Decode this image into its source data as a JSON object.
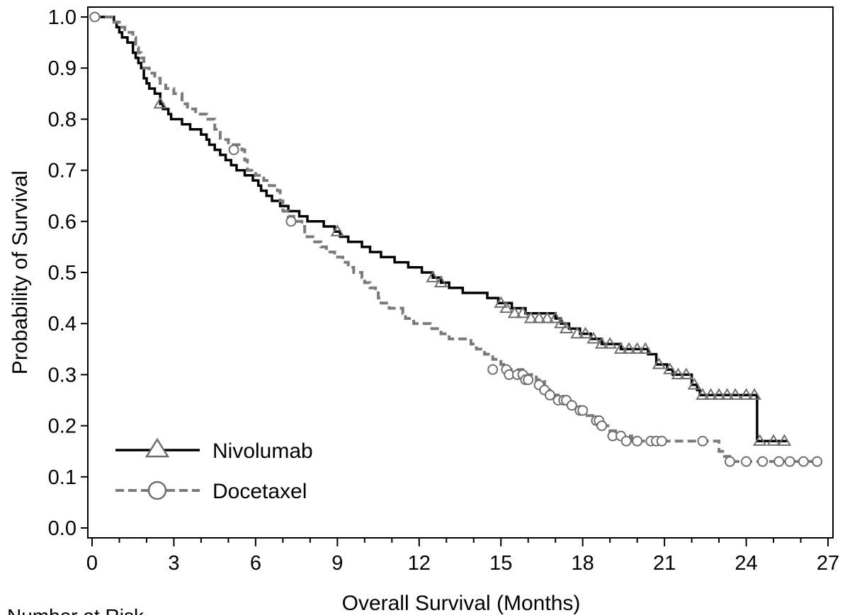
{
  "chart_data": {
    "type": "line",
    "xlabel": "Overall Survival (Months)",
    "ylabel": "Probability of Survival",
    "xlim": [
      0,
      27
    ],
    "ylim": [
      0,
      1.02
    ],
    "x_ticks": [
      0,
      3,
      6,
      9,
      12,
      15,
      18,
      21,
      24,
      27
    ],
    "y_ticks": [
      0.0,
      0.1,
      0.2,
      0.3,
      0.4,
      0.5,
      0.6,
      0.7,
      0.8,
      0.9,
      1.0
    ],
    "x_tick_labels": [
      "0",
      "3",
      "6",
      "9",
      "12",
      "15",
      "18",
      "21",
      "24",
      "27"
    ],
    "y_tick_labels": [
      "0.0",
      "0.1",
      "0.2",
      "0.3",
      "0.4",
      "0.5",
      "0.6",
      "0.7",
      "0.8",
      "0.9",
      "1.0"
    ],
    "grid": false,
    "legend_position": "bottom-left",
    "below_label": "Number at Risk",
    "series": [
      {
        "name": "Nivolumab",
        "color": "#000000",
        "line_style": "solid",
        "marker": "triangle",
        "points": [
          [
            0,
            1.0
          ],
          [
            0.6,
            1.0
          ],
          [
            0.8,
            0.99
          ],
          [
            0.9,
            0.98
          ],
          [
            1.0,
            0.97
          ],
          [
            1.1,
            0.96
          ],
          [
            1.3,
            0.95
          ],
          [
            1.5,
            0.93
          ],
          [
            1.6,
            0.92
          ],
          [
            1.7,
            0.91
          ],
          [
            1.8,
            0.9
          ],
          [
            1.9,
            0.88
          ],
          [
            2.0,
            0.87
          ],
          [
            2.1,
            0.86
          ],
          [
            2.3,
            0.85
          ],
          [
            2.5,
            0.83
          ],
          [
            2.6,
            0.82
          ],
          [
            2.8,
            0.81
          ],
          [
            2.9,
            0.8
          ],
          [
            3.3,
            0.79
          ],
          [
            3.6,
            0.78
          ],
          [
            4.0,
            0.77
          ],
          [
            4.2,
            0.76
          ],
          [
            4.3,
            0.75
          ],
          [
            4.5,
            0.74
          ],
          [
            4.7,
            0.73
          ],
          [
            4.9,
            0.72
          ],
          [
            5.1,
            0.71
          ],
          [
            5.3,
            0.7
          ],
          [
            5.6,
            0.69
          ],
          [
            5.9,
            0.68
          ],
          [
            6.1,
            0.67
          ],
          [
            6.2,
            0.66
          ],
          [
            6.4,
            0.65
          ],
          [
            6.6,
            0.64
          ],
          [
            6.9,
            0.63
          ],
          [
            7.2,
            0.62
          ],
          [
            7.6,
            0.61
          ],
          [
            7.9,
            0.6
          ],
          [
            8.5,
            0.59
          ],
          [
            8.9,
            0.58
          ],
          [
            9.1,
            0.57
          ],
          [
            9.4,
            0.56
          ],
          [
            9.9,
            0.55
          ],
          [
            10.2,
            0.54
          ],
          [
            10.6,
            0.53
          ],
          [
            11.1,
            0.52
          ],
          [
            11.6,
            0.51
          ],
          [
            12.1,
            0.5
          ],
          [
            12.5,
            0.49
          ],
          [
            12.8,
            0.48
          ],
          [
            13.1,
            0.47
          ],
          [
            13.6,
            0.46
          ],
          [
            14.5,
            0.45
          ],
          [
            14.9,
            0.44
          ],
          [
            15.4,
            0.43
          ],
          [
            15.9,
            0.42
          ],
          [
            17.0,
            0.41
          ],
          [
            17.2,
            0.4
          ],
          [
            17.5,
            0.39
          ],
          [
            17.9,
            0.38
          ],
          [
            18.3,
            0.37
          ],
          [
            18.7,
            0.36
          ],
          [
            19.4,
            0.35
          ],
          [
            20.4,
            0.34
          ],
          [
            20.7,
            0.32
          ],
          [
            21.1,
            0.31
          ],
          [
            21.3,
            0.3
          ],
          [
            22.0,
            0.28
          ],
          [
            22.2,
            0.27
          ],
          [
            22.3,
            0.26
          ],
          [
            24.4,
            0.26
          ],
          [
            24.4,
            0.17
          ],
          [
            25.5,
            0.17
          ]
        ],
        "censored": [
          [
            2.5,
            0.83
          ],
          [
            9.0,
            0.58
          ],
          [
            12.5,
            0.49
          ],
          [
            12.8,
            0.48
          ],
          [
            15.0,
            0.44
          ],
          [
            15.2,
            0.43
          ],
          [
            15.5,
            0.42
          ],
          [
            15.8,
            0.42
          ],
          [
            16.1,
            0.41
          ],
          [
            16.4,
            0.41
          ],
          [
            16.7,
            0.41
          ],
          [
            17.0,
            0.41
          ],
          [
            17.2,
            0.4
          ],
          [
            17.4,
            0.39
          ],
          [
            17.8,
            0.38
          ],
          [
            18.1,
            0.38
          ],
          [
            18.4,
            0.37
          ],
          [
            18.7,
            0.36
          ],
          [
            19.0,
            0.36
          ],
          [
            19.4,
            0.35
          ],
          [
            19.7,
            0.35
          ],
          [
            20.0,
            0.35
          ],
          [
            20.3,
            0.35
          ],
          [
            20.8,
            0.32
          ],
          [
            21.2,
            0.31
          ],
          [
            21.5,
            0.3
          ],
          [
            21.8,
            0.3
          ],
          [
            22.1,
            0.28
          ],
          [
            22.4,
            0.26
          ],
          [
            22.7,
            0.26
          ],
          [
            23.0,
            0.26
          ],
          [
            23.3,
            0.26
          ],
          [
            23.6,
            0.26
          ],
          [
            24.0,
            0.26
          ],
          [
            24.3,
            0.26
          ],
          [
            24.5,
            0.17
          ],
          [
            25.0,
            0.17
          ],
          [
            25.4,
            0.17
          ]
        ]
      },
      {
        "name": "Docetaxel",
        "color": "#7a7a7a",
        "line_style": "dashed",
        "marker": "circle",
        "points": [
          [
            0,
            1.0
          ],
          [
            0.6,
            1.0
          ],
          [
            0.8,
            0.99
          ],
          [
            1.0,
            0.98
          ],
          [
            1.2,
            0.97
          ],
          [
            1.5,
            0.96
          ],
          [
            1.6,
            0.94
          ],
          [
            1.7,
            0.93
          ],
          [
            1.8,
            0.92
          ],
          [
            1.9,
            0.9
          ],
          [
            2.1,
            0.89
          ],
          [
            2.3,
            0.88
          ],
          [
            2.5,
            0.87
          ],
          [
            2.7,
            0.86
          ],
          [
            3.0,
            0.85
          ],
          [
            3.3,
            0.83
          ],
          [
            3.5,
            0.82
          ],
          [
            3.8,
            0.81
          ],
          [
            4.2,
            0.8
          ],
          [
            4.5,
            0.78
          ],
          [
            4.7,
            0.76
          ],
          [
            5.0,
            0.75
          ],
          [
            5.5,
            0.74
          ],
          [
            5.6,
            0.72
          ],
          [
            5.7,
            0.7
          ],
          [
            6.0,
            0.69
          ],
          [
            6.3,
            0.68
          ],
          [
            6.5,
            0.67
          ],
          [
            6.8,
            0.66
          ],
          [
            6.9,
            0.64
          ],
          [
            7.0,
            0.62
          ],
          [
            7.2,
            0.61
          ],
          [
            7.4,
            0.6
          ],
          [
            7.7,
            0.59
          ],
          [
            7.8,
            0.57
          ],
          [
            8.1,
            0.56
          ],
          [
            8.4,
            0.55
          ],
          [
            8.6,
            0.54
          ],
          [
            8.9,
            0.53
          ],
          [
            9.2,
            0.52
          ],
          [
            9.4,
            0.51
          ],
          [
            9.6,
            0.5
          ],
          [
            9.9,
            0.49
          ],
          [
            10.0,
            0.48
          ],
          [
            10.2,
            0.47
          ],
          [
            10.4,
            0.46
          ],
          [
            10.5,
            0.45
          ],
          [
            10.6,
            0.44
          ],
          [
            10.9,
            0.43
          ],
          [
            11.4,
            0.42
          ],
          [
            11.5,
            0.41
          ],
          [
            11.8,
            0.4
          ],
          [
            12.4,
            0.39
          ],
          [
            12.8,
            0.38
          ],
          [
            13.1,
            0.37
          ],
          [
            13.9,
            0.36
          ],
          [
            14.1,
            0.35
          ],
          [
            14.4,
            0.34
          ],
          [
            14.7,
            0.33
          ],
          [
            15.0,
            0.32
          ],
          [
            15.1,
            0.31
          ],
          [
            15.8,
            0.3
          ],
          [
            16.3,
            0.29
          ],
          [
            16.6,
            0.27
          ],
          [
            16.8,
            0.26
          ],
          [
            17.1,
            0.25
          ],
          [
            17.5,
            0.24
          ],
          [
            17.7,
            0.23
          ],
          [
            18.0,
            0.22
          ],
          [
            18.5,
            0.21
          ],
          [
            18.7,
            0.2
          ],
          [
            19.0,
            0.19
          ],
          [
            19.3,
            0.18
          ],
          [
            19.8,
            0.17
          ],
          [
            22.7,
            0.17
          ],
          [
            23.0,
            0.15
          ],
          [
            23.2,
            0.14
          ],
          [
            23.4,
            0.13
          ],
          [
            26.5,
            0.13
          ]
        ],
        "censored": [
          [
            0.1,
            1.0
          ],
          [
            5.2,
            0.74
          ],
          [
            7.3,
            0.6
          ],
          [
            14.7,
            0.31
          ],
          [
            15.2,
            0.31
          ],
          [
            15.3,
            0.3
          ],
          [
            15.6,
            0.3
          ],
          [
            15.8,
            0.3
          ],
          [
            15.9,
            0.29
          ],
          [
            16.0,
            0.29
          ],
          [
            16.4,
            0.28
          ],
          [
            16.6,
            0.27
          ],
          [
            16.8,
            0.26
          ],
          [
            17.1,
            0.25
          ],
          [
            17.3,
            0.25
          ],
          [
            17.4,
            0.25
          ],
          [
            17.6,
            0.24
          ],
          [
            17.9,
            0.23
          ],
          [
            18.0,
            0.23
          ],
          [
            18.5,
            0.21
          ],
          [
            18.6,
            0.21
          ],
          [
            18.7,
            0.2
          ],
          [
            19.1,
            0.18
          ],
          [
            19.4,
            0.18
          ],
          [
            19.6,
            0.17
          ],
          [
            20.0,
            0.17
          ],
          [
            20.5,
            0.17
          ],
          [
            20.7,
            0.17
          ],
          [
            20.9,
            0.17
          ],
          [
            22.4,
            0.17
          ],
          [
            23.4,
            0.13
          ],
          [
            24.0,
            0.13
          ],
          [
            24.6,
            0.13
          ],
          [
            25.2,
            0.13
          ],
          [
            25.6,
            0.13
          ],
          [
            26.1,
            0.13
          ],
          [
            26.6,
            0.13
          ]
        ]
      }
    ]
  }
}
